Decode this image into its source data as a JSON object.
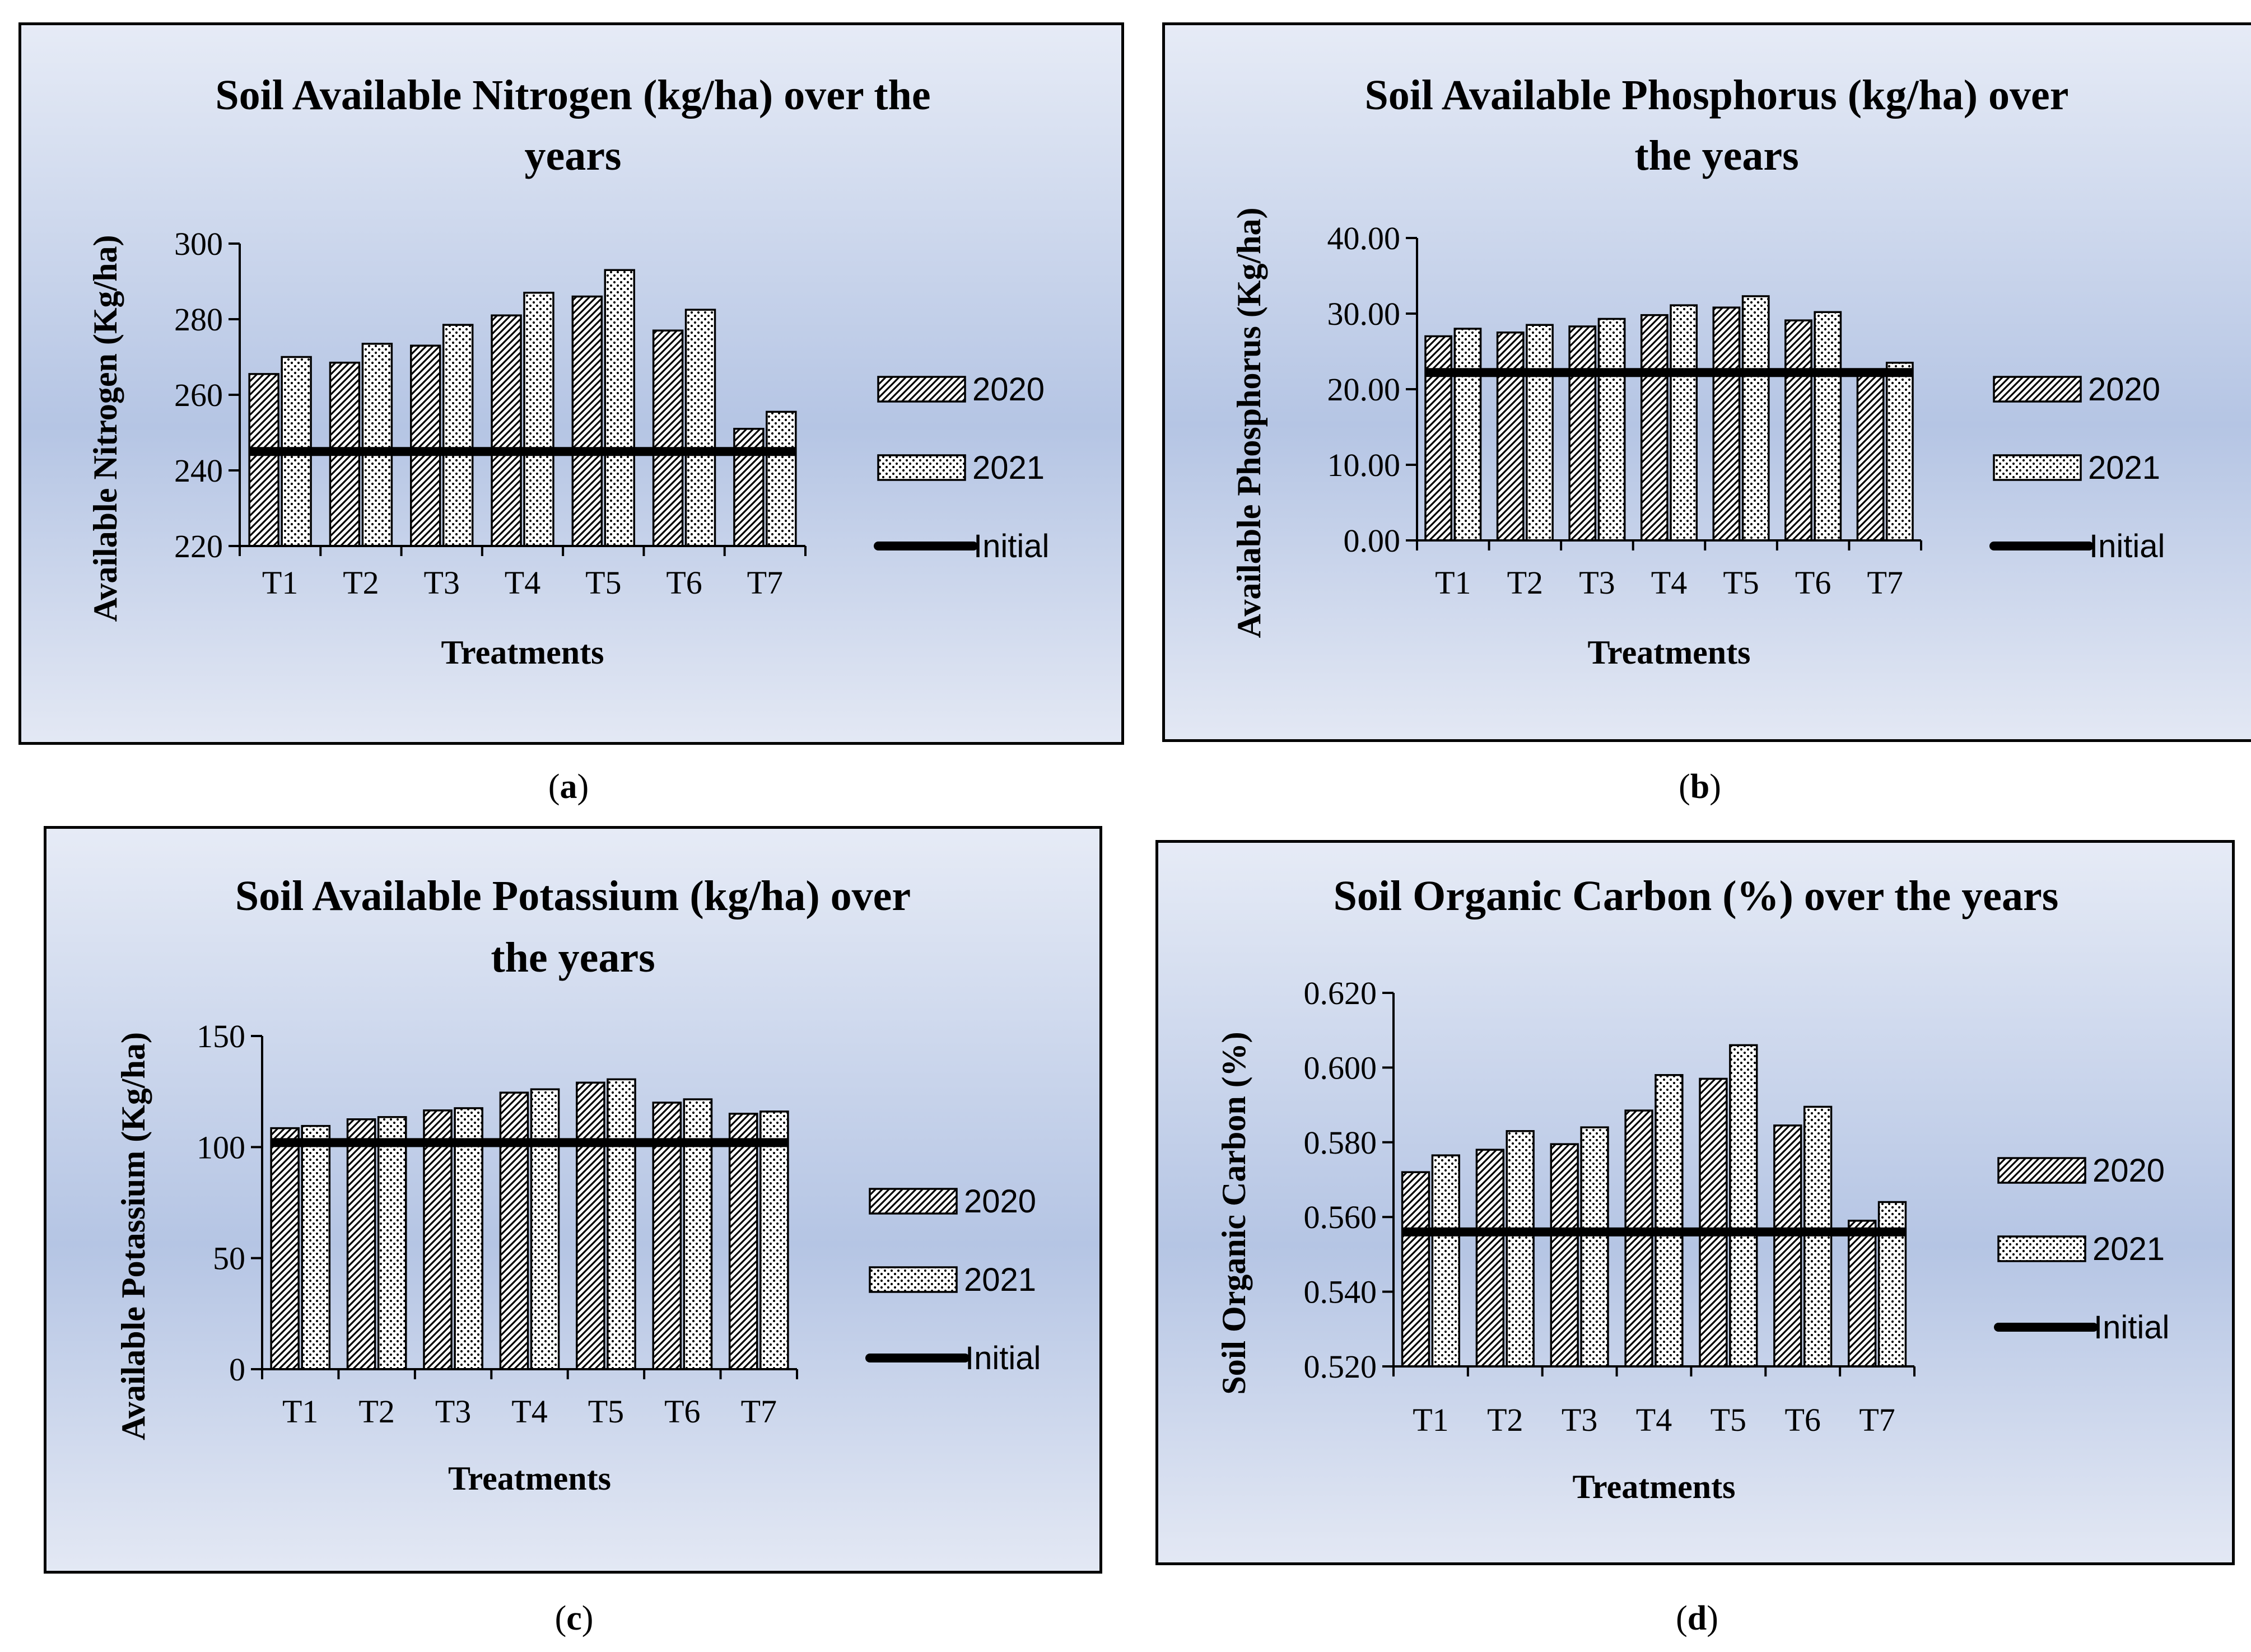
{
  "panels": [
    {
      "caption": "a",
      "chart_data": {
        "type": "bar",
        "title": [
          "Soil Available Nitrogen (kg/ha) over the",
          "years"
        ],
        "xlabel": "Treatments",
        "ylabel": "Available  Nitrogen (Kg/ha)",
        "categories": [
          "T1",
          "T2",
          "T3",
          "T4",
          "T5",
          "T6",
          "T7"
        ],
        "ylim": [
          220,
          300
        ],
        "yticks": [
          "220",
          "240",
          "260",
          "280",
          "300"
        ],
        "series": [
          {
            "name": "2020",
            "values": [
              265.5,
              268.5,
              273,
              281,
              286,
              277,
              251
            ]
          },
          {
            "name": "2021",
            "values": [
              270,
              273.5,
              278.5,
              287,
              293,
              282.5,
              255.5
            ]
          }
        ],
        "initial": {
          "name": "Initial",
          "value": 245
        },
        "legend_position": "right",
        "grid": false
      }
    },
    {
      "caption": "b",
      "chart_data": {
        "type": "bar",
        "title": [
          "Soil Available Phosphorus (kg/ha) over",
          "the years"
        ],
        "xlabel": "Treatments",
        "ylabel": "Available Phosphorus (Kg/ha)",
        "categories": [
          "T1",
          "T2",
          "T3",
          "T4",
          "T5",
          "T6",
          "T7"
        ],
        "ylim": [
          0,
          40
        ],
        "yticks": [
          "0.00",
          "10.00",
          "20.00",
          "30.00",
          "40.00"
        ],
        "series": [
          {
            "name": "2020",
            "values": [
              27,
              27.5,
              28.3,
              29.8,
              30.8,
              29.1,
              22.6
            ]
          },
          {
            "name": "2021",
            "values": [
              28,
              28.5,
              29.3,
              31.1,
              32.3,
              30.2,
              23.5
            ]
          }
        ],
        "initial": {
          "name": "Initial",
          "value": 22.2
        },
        "legend_position": "right",
        "grid": false
      }
    },
    {
      "caption": "c",
      "chart_data": {
        "type": "bar",
        "title": [
          "Soil Available Potassium (kg/ha) over",
          "the years"
        ],
        "xlabel": "Treatments",
        "ylabel": "Available Potassium (Kg/ha)",
        "categories": [
          "T1",
          "T2",
          "T3",
          "T4",
          "T5",
          "T6",
          "T7"
        ],
        "ylim": [
          0,
          150
        ],
        "yticks": [
          "0",
          "50",
          "100",
          "150"
        ],
        "series": [
          {
            "name": "2020",
            "values": [
              108.5,
              112.5,
              116.5,
              124.5,
              129,
              120,
              115
            ]
          },
          {
            "name": "2021",
            "values": [
              109.5,
              113.5,
              117.5,
              126,
              130.5,
              121.5,
              116
            ]
          }
        ],
        "initial": {
          "name": "Initial",
          "value": 102
        },
        "legend_position": "right",
        "grid": false
      }
    },
    {
      "caption": "d",
      "chart_data": {
        "type": "bar",
        "title": [
          "Soil Organic Carbon (%) over the years"
        ],
        "xlabel": "Treatments",
        "ylabel": "Soil Organic Carbon (%)",
        "categories": [
          "T1",
          "T2",
          "T3",
          "T4",
          "T5",
          "T6",
          "T7"
        ],
        "ylim": [
          0.52,
          0.62
        ],
        "yticks": [
          "0.520",
          "0.540",
          "0.560",
          "0.580",
          "0.600",
          "0.620"
        ],
        "series": [
          {
            "name": "2020",
            "values": [
              0.572,
              0.578,
              0.5795,
              0.5885,
              0.597,
              0.5845,
              0.559
            ]
          },
          {
            "name": "2021",
            "values": [
              0.5765,
              0.583,
              0.584,
              0.598,
              0.606,
              0.5895,
              0.564
            ]
          }
        ],
        "initial": {
          "name": "Initial",
          "value": 0.556
        },
        "legend_position": "right",
        "grid": false
      }
    }
  ]
}
